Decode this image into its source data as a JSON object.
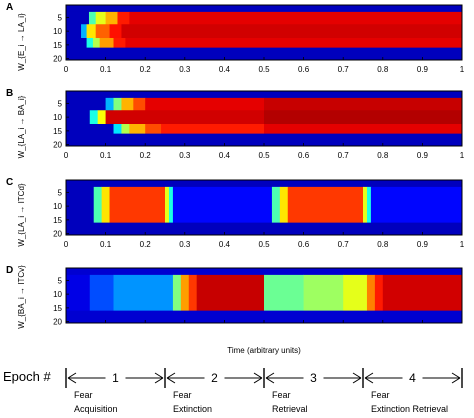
{
  "chart_data": [
    {
      "panel": "A",
      "type": "heatmap",
      "ylabel": "W_{E_i → LA_i}",
      "x_ticks": [
        "0",
        "0.1",
        "0.2",
        "0.3",
        "0.4",
        "0.5",
        "0.6",
        "0.7",
        "0.8",
        "0.9",
        "1"
      ],
      "y_ticks": [
        "5",
        "10",
        "15",
        "20"
      ],
      "xlim": [
        0,
        1
      ],
      "ylim": [
        0,
        20
      ],
      "colormap": "jet",
      "bands": [
        {
          "y": [
            0.5,
            3
          ],
          "rows": [
            {
              "x0": 0,
              "x1": 1,
              "v": 0.06
            }
          ]
        },
        {
          "y": [
            3,
            7.5
          ],
          "rows": [
            {
              "x0": 0,
              "x1": 0.058,
              "v": 0.06
            },
            {
              "x0": 0.058,
              "x1": 0.075,
              "v": 0.45
            },
            {
              "x0": 0.075,
              "x1": 0.1,
              "v": 0.6
            },
            {
              "x0": 0.1,
              "x1": 0.13,
              "v": 0.7
            },
            {
              "x0": 0.13,
              "x1": 0.16,
              "v": 0.85
            },
            {
              "x0": 0.16,
              "x1": 1,
              "v": 0.9
            }
          ]
        },
        {
          "y": [
            7.5,
            12.5
          ],
          "rows": [
            {
              "x0": 0,
              "x1": 0.038,
              "v": 0.06
            },
            {
              "x0": 0.038,
              "x1": 0.052,
              "v": 0.3
            },
            {
              "x0": 0.052,
              "x1": 0.075,
              "v": 0.65
            },
            {
              "x0": 0.075,
              "x1": 0.11,
              "v": 0.78
            },
            {
              "x0": 0.11,
              "x1": 0.14,
              "v": 0.86
            },
            {
              "x0": 0.14,
              "x1": 1,
              "v": 0.92
            }
          ]
        },
        {
          "y": [
            12.5,
            16
          ],
          "rows": [
            {
              "x0": 0,
              "x1": 0.052,
              "v": 0.06
            },
            {
              "x0": 0.052,
              "x1": 0.068,
              "v": 0.4
            },
            {
              "x0": 0.068,
              "x1": 0.085,
              "v": 0.55
            },
            {
              "x0": 0.085,
              "x1": 0.12,
              "v": 0.72
            },
            {
              "x0": 0.12,
              "x1": 0.15,
              "v": 0.85
            },
            {
              "x0": 0.15,
              "x1": 1,
              "v": 0.9
            }
          ]
        },
        {
          "y": [
            16,
            20.5
          ],
          "rows": [
            {
              "x0": 0,
              "x1": 1,
              "v": 0.06
            }
          ]
        }
      ]
    },
    {
      "panel": "B",
      "type": "heatmap",
      "ylabel": "W_{LA_i → BA_i}",
      "x_ticks": [
        "0",
        "0.1",
        "0.2",
        "0.3",
        "0.4",
        "0.5",
        "0.6",
        "0.7",
        "0.8",
        "0.9",
        "1"
      ],
      "y_ticks": [
        "5",
        "10",
        "15",
        "20"
      ],
      "xlim": [
        0,
        1
      ],
      "ylim": [
        0,
        20
      ],
      "colormap": "jet",
      "bands": [
        {
          "y": [
            0.5,
            3
          ],
          "rows": [
            {
              "x0": 0,
              "x1": 1,
              "v": 0.06
            }
          ]
        },
        {
          "y": [
            3,
            7.5
          ],
          "rows": [
            {
              "x0": 0,
              "x1": 0.1,
              "v": 0.06
            },
            {
              "x0": 0.1,
              "x1": 0.12,
              "v": 0.3
            },
            {
              "x0": 0.12,
              "x1": 0.14,
              "v": 0.5
            },
            {
              "x0": 0.14,
              "x1": 0.17,
              "v": 0.7
            },
            {
              "x0": 0.17,
              "x1": 0.2,
              "v": 0.8
            },
            {
              "x0": 0.2,
              "x1": 0.5,
              "v": 0.9
            },
            {
              "x0": 0.5,
              "x1": 1,
              "v": 0.93
            }
          ]
        },
        {
          "y": [
            7.5,
            12.5
          ],
          "rows": [
            {
              "x0": 0,
              "x1": 0.06,
              "v": 0.06
            },
            {
              "x0": 0.06,
              "x1": 0.08,
              "v": 0.4
            },
            {
              "x0": 0.08,
              "x1": 0.1,
              "v": 0.62
            },
            {
              "x0": 0.1,
              "x1": 0.5,
              "v": 0.92
            },
            {
              "x0": 0.5,
              "x1": 1,
              "v": 0.95
            }
          ]
        },
        {
          "y": [
            12.5,
            16
          ],
          "rows": [
            {
              "x0": 0,
              "x1": 0.12,
              "v": 0.06
            },
            {
              "x0": 0.12,
              "x1": 0.14,
              "v": 0.35
            },
            {
              "x0": 0.14,
              "x1": 0.16,
              "v": 0.55
            },
            {
              "x0": 0.16,
              "x1": 0.2,
              "v": 0.7
            },
            {
              "x0": 0.2,
              "x1": 0.24,
              "v": 0.8
            },
            {
              "x0": 0.24,
              "x1": 0.5,
              "v": 0.85
            },
            {
              "x0": 0.5,
              "x1": 1,
              "v": 0.9
            }
          ]
        },
        {
          "y": [
            16,
            20.5
          ],
          "rows": [
            {
              "x0": 0,
              "x1": 1,
              "v": 0.06
            }
          ]
        }
      ]
    },
    {
      "panel": "C",
      "type": "heatmap",
      "ylabel": "W_{LA_i → ITCd}",
      "x_ticks": [
        "0",
        "0.1",
        "0.2",
        "0.3",
        "0.4",
        "0.5",
        "0.6",
        "0.7",
        "0.8",
        "0.9",
        "1"
      ],
      "y_ticks": [
        "5",
        "10",
        "15",
        "20"
      ],
      "xlim": [
        0,
        1
      ],
      "ylim": [
        0,
        20
      ],
      "colormap": "jet",
      "bands": [
        {
          "y": [
            0.5,
            3
          ],
          "rows": [
            {
              "x0": 0,
              "x1": 1,
              "v": 0.06
            }
          ]
        },
        {
          "y": [
            3,
            16
          ],
          "rows": [
            {
              "x0": 0,
              "x1": 0.07,
              "v": 0.06
            },
            {
              "x0": 0.07,
              "x1": 0.09,
              "v": 0.45
            },
            {
              "x0": 0.09,
              "x1": 0.11,
              "v": 0.65
            },
            {
              "x0": 0.11,
              "x1": 0.25,
              "v": 0.82
            },
            {
              "x0": 0.25,
              "x1": 0.26,
              "v": 0.6
            },
            {
              "x0": 0.26,
              "x1": 0.27,
              "v": 0.4
            },
            {
              "x0": 0.27,
              "x1": 0.52,
              "v": 0.13
            },
            {
              "x0": 0.52,
              "x1": 0.54,
              "v": 0.45
            },
            {
              "x0": 0.54,
              "x1": 0.56,
              "v": 0.65
            },
            {
              "x0": 0.56,
              "x1": 0.75,
              "v": 0.82
            },
            {
              "x0": 0.75,
              "x1": 0.76,
              "v": 0.6
            },
            {
              "x0": 0.76,
              "x1": 0.77,
              "v": 0.4
            },
            {
              "x0": 0.77,
              "x1": 1,
              "v": 0.13
            }
          ]
        },
        {
          "y": [
            16,
            20.5
          ],
          "rows": [
            {
              "x0": 0,
              "x1": 1,
              "v": 0.06
            }
          ]
        }
      ]
    },
    {
      "panel": "D",
      "type": "heatmap",
      "ylabel": "W_{BA_i → ITCv}",
      "x_ticks": [
        "0",
        "0.1",
        "0.2",
        "0.3",
        "0.4",
        "0.5",
        "0.6",
        "0.7",
        "0.8",
        "0.9",
        "1"
      ],
      "y_ticks": [
        "5",
        "10",
        "15",
        "20"
      ],
      "xlim": [
        0,
        1
      ],
      "ylim": [
        0,
        20
      ],
      "xlabel": "Time (arbitrary units)",
      "colormap": "jet",
      "bands": [
        {
          "y": [
            0.5,
            3
          ],
          "rows": [
            {
              "x0": 0,
              "x1": 1,
              "v": 0.08
            }
          ]
        },
        {
          "y": [
            3,
            16
          ],
          "rows": [
            {
              "x0": 0,
              "x1": 0.06,
              "v": 0.1
            },
            {
              "x0": 0.06,
              "x1": 0.12,
              "v": 0.2
            },
            {
              "x0": 0.12,
              "x1": 0.27,
              "v": 0.27
            },
            {
              "x0": 0.27,
              "x1": 0.29,
              "v": 0.5
            },
            {
              "x0": 0.29,
              "x1": 0.31,
              "v": 0.72
            },
            {
              "x0": 0.31,
              "x1": 0.33,
              "v": 0.82
            },
            {
              "x0": 0.33,
              "x1": 0.5,
              "v": 0.93
            },
            {
              "x0": 0.5,
              "x1": 0.6,
              "v": 0.48
            },
            {
              "x0": 0.6,
              "x1": 0.7,
              "v": 0.53
            },
            {
              "x0": 0.7,
              "x1": 0.76,
              "v": 0.6
            },
            {
              "x0": 0.76,
              "x1": 0.78,
              "v": 0.75
            },
            {
              "x0": 0.78,
              "x1": 0.8,
              "v": 0.85
            },
            {
              "x0": 0.8,
              "x1": 1,
              "v": 0.92
            }
          ]
        },
        {
          "y": [
            16,
            20.5
          ],
          "rows": [
            {
              "x0": 0,
              "x1": 1,
              "v": 0.08
            }
          ]
        }
      ]
    }
  ],
  "epoch_axis": {
    "label": "Epoch #",
    "numbers": [
      "1",
      "2",
      "3",
      "4"
    ],
    "boundaries": [
      0,
      0.25,
      0.5,
      0.75,
      1
    ],
    "phase_labels": [
      {
        "line1": "Fear",
        "line2": "Acquisition"
      },
      {
        "line1": "Fear",
        "line2": "Extinction"
      },
      {
        "line1": "Fear",
        "line2": "Retrieval"
      },
      {
        "line1": "Fear",
        "line2": "Extinction Retrieval"
      }
    ]
  },
  "colors": {
    "frame": "#000000",
    "low": "#00008f",
    "high": "#800000"
  }
}
